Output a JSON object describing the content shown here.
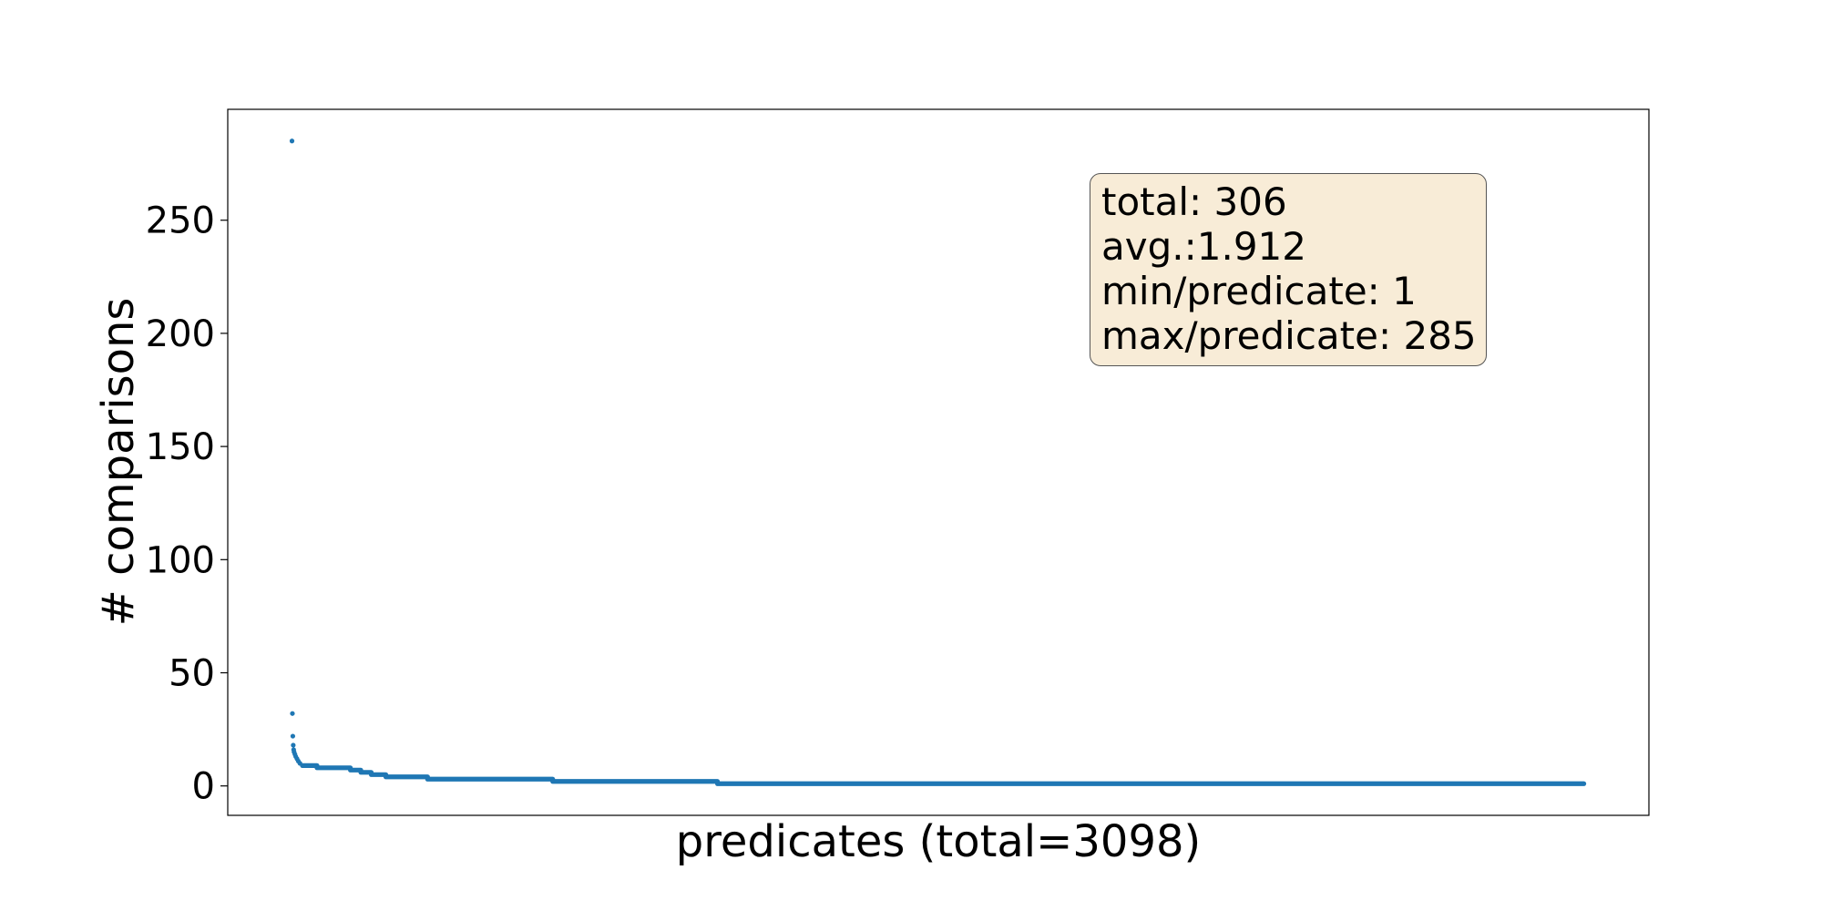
{
  "chart_data": {
    "type": "scatter",
    "title": "",
    "xlabel": "predicates (total=3098)",
    "ylabel": "# comparisons",
    "ylim": [
      -13,
      299
    ],
    "xlim": [
      -154,
      3253
    ],
    "yticks": [
      0,
      50,
      100,
      150,
      200,
      250
    ],
    "xticks": [],
    "grid": false,
    "marker_color": "#1f77b4",
    "n_points": 3098,
    "outliers": [
      {
        "x": 0,
        "y": 285
      },
      {
        "x": 1,
        "y": 32
      },
      {
        "x": 2,
        "y": 22
      },
      {
        "x": 3,
        "y": 18
      },
      {
        "x": 4,
        "y": 16
      },
      {
        "x": 5,
        "y": 15
      },
      {
        "x": 7,
        "y": 14
      },
      {
        "x": 9,
        "y": 13
      },
      {
        "x": 12,
        "y": 12
      },
      {
        "x": 15,
        "y": 11
      },
      {
        "x": 19,
        "y": 10
      }
    ],
    "runs": [
      {
        "x_start": 25,
        "x_end": 60,
        "y": 9
      },
      {
        "x_start": 60,
        "x_end": 140,
        "y": 8
      },
      {
        "x_start": 140,
        "x_end": 165,
        "y": 7
      },
      {
        "x_start": 165,
        "x_end": 190,
        "y": 6
      },
      {
        "x_start": 190,
        "x_end": 225,
        "y": 5
      },
      {
        "x_start": 225,
        "x_end": 325,
        "y": 4
      },
      {
        "x_start": 325,
        "x_end": 625,
        "y": 3
      },
      {
        "x_start": 625,
        "x_end": 1020,
        "y": 2
      },
      {
        "x_start": 1020,
        "x_end": 3097,
        "y": 1
      }
    ],
    "annotation": {
      "lines": [
        "total: 306",
        "avg.:1.912",
        "min/predicate: 1",
        "max/predicate: 285"
      ],
      "box_color": "#f8ecd7",
      "placement": "top-right"
    }
  }
}
